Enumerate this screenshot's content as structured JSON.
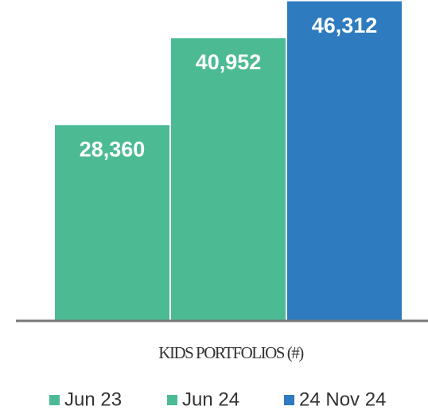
{
  "chart_data": {
    "type": "bar",
    "categories": [
      "Jun 23",
      "Jun 24",
      "24 Nov 24"
    ],
    "values": [
      28360,
      40952,
      46312
    ],
    "value_labels": [
      "28,360",
      "40,952",
      "46,312"
    ],
    "colors": [
      "#4cbb94",
      "#4cbb94",
      "#2e7bbf"
    ],
    "xlabel": "KIDS PORTFOLIOS (#)",
    "ylim": [
      0,
      46500
    ],
    "legend": "bottom"
  }
}
